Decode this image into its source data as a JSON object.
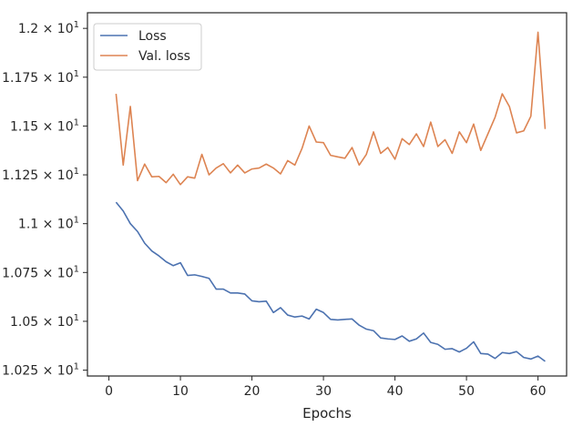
{
  "chart_data": {
    "type": "line",
    "xlabel": "Epochs",
    "ylabel": "",
    "xlim": [
      -3.0,
      64.0
    ],
    "ylim": [
      10.22,
      12.08
    ],
    "x_ticks": [
      0,
      10,
      20,
      30,
      40,
      50,
      60
    ],
    "x_tick_labels": [
      "0",
      "10",
      "20",
      "30",
      "40",
      "50",
      "60"
    ],
    "y_ticks": [
      10.25,
      10.5,
      10.75,
      11.0,
      11.25,
      11.5,
      11.75,
      12.0
    ],
    "y_tick_labels": [
      {
        "mantissa": "1.025",
        "base": "10",
        "exp": "1"
      },
      {
        "mantissa": "1.05",
        "base": "10",
        "exp": "1"
      },
      {
        "mantissa": "1.075",
        "base": "10",
        "exp": "1"
      },
      {
        "mantissa": "1.1",
        "base": "10",
        "exp": "1"
      },
      {
        "mantissa": "1.125",
        "base": "10",
        "exp": "1"
      },
      {
        "mantissa": "1.15",
        "base": "10",
        "exp": "1"
      },
      {
        "mantissa": "1.175",
        "base": "10",
        "exp": "1"
      },
      {
        "mantissa": "1.2",
        "base": "10",
        "exp": "1"
      }
    ],
    "grid": false,
    "legend_placement": "top-left",
    "x": [
      1,
      2,
      3,
      4,
      5,
      6,
      7,
      8,
      9,
      10,
      11,
      12,
      13,
      14,
      15,
      16,
      17,
      18,
      19,
      20,
      21,
      22,
      23,
      24,
      25,
      26,
      27,
      28,
      29,
      30,
      31,
      32,
      33,
      34,
      35,
      36,
      37,
      38,
      39,
      40,
      41,
      42,
      43,
      44,
      45,
      46,
      47,
      48,
      49,
      50,
      51,
      52,
      53,
      54,
      55,
      56,
      57,
      58,
      59,
      60,
      61
    ],
    "series": [
      {
        "name": "Loss",
        "color": "#4c72b0",
        "values": [
          11.11,
          11.065,
          11.0,
          10.96,
          10.9,
          10.86,
          10.835,
          10.805,
          10.785,
          10.8,
          10.735,
          10.738,
          10.73,
          10.72,
          10.665,
          10.665,
          10.645,
          10.645,
          10.64,
          10.605,
          10.6,
          10.603,
          10.545,
          10.57,
          10.532,
          10.522,
          10.527,
          10.512,
          10.562,
          10.545,
          10.51,
          10.507,
          10.51,
          10.512,
          10.48,
          10.46,
          10.452,
          10.415,
          10.41,
          10.407,
          10.425,
          10.398,
          10.41,
          10.44,
          10.392,
          10.382,
          10.357,
          10.36,
          10.343,
          10.362,
          10.395,
          10.335,
          10.332,
          10.31,
          10.34,
          10.335,
          10.345,
          10.315,
          10.307,
          10.322,
          10.295
        ]
      },
      {
        "name": "Val. loss",
        "color": "#dd8452",
        "values": [
          11.665,
          11.3,
          11.6,
          11.22,
          11.305,
          11.24,
          11.242,
          11.21,
          11.253,
          11.2,
          11.24,
          11.233,
          11.355,
          11.25,
          11.285,
          11.307,
          11.26,
          11.3,
          11.26,
          11.28,
          11.285,
          11.305,
          11.285,
          11.255,
          11.323,
          11.3,
          11.385,
          11.5,
          11.418,
          11.415,
          11.35,
          11.342,
          11.335,
          11.39,
          11.3,
          11.355,
          11.47,
          11.36,
          11.39,
          11.33,
          11.435,
          11.405,
          11.46,
          11.395,
          11.52,
          11.395,
          11.43,
          11.36,
          11.47,
          11.415,
          11.51,
          11.375,
          11.46,
          11.545,
          11.665,
          11.6,
          11.465,
          11.475,
          11.55,
          11.98,
          11.485
        ]
      }
    ]
  }
}
